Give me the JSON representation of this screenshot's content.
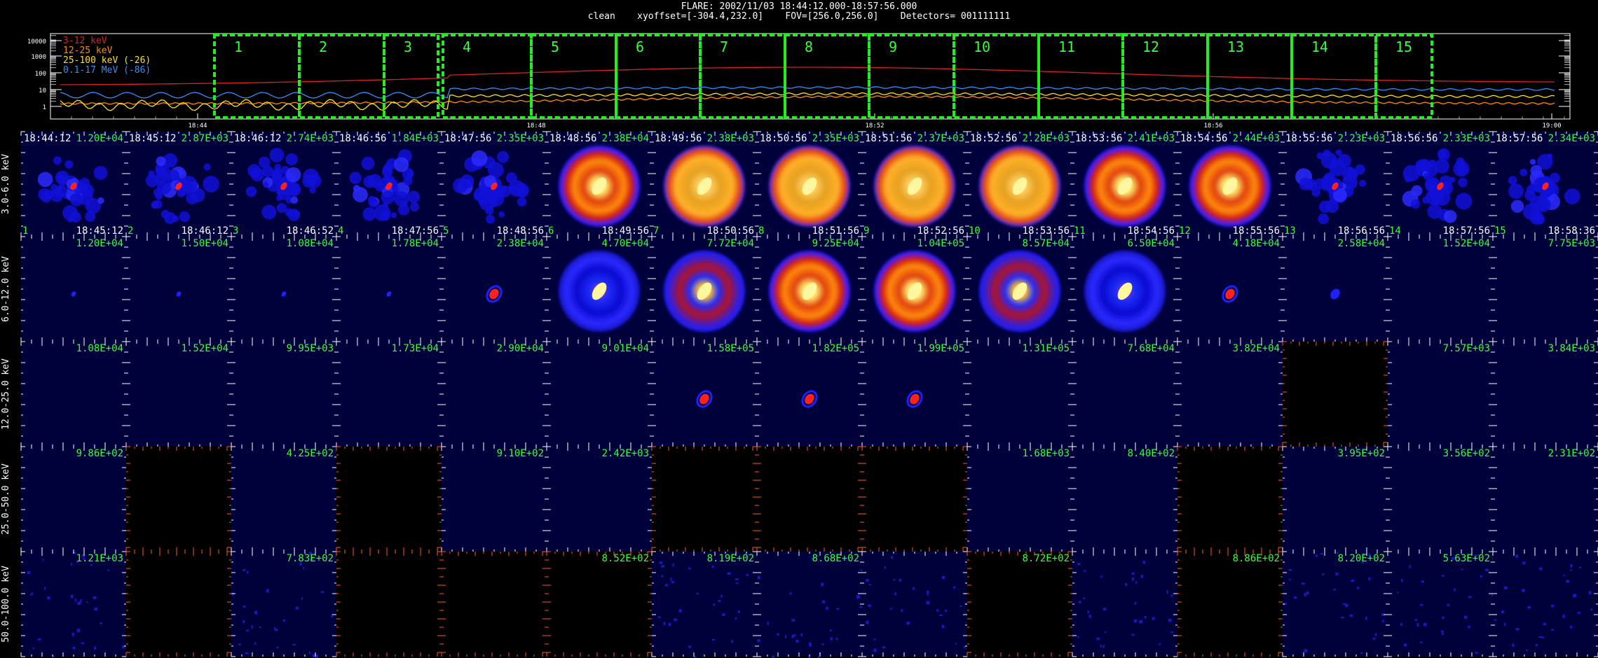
{
  "header": {
    "line1": "FLARE: 2002/11/03 18:44:12.000-18:57:56.000",
    "line2": "clean    xyoffset=[-304.4,232.0]    FOV=[256.0,256.0]    Detectors= 001111111"
  },
  "lightcurve": {
    "y_tick_labels": [
      "10000",
      "1000",
      "100",
      "10",
      "1"
    ],
    "time_tick_labels": [
      "18:44",
      "18:48",
      "18:52",
      "18:56",
      "19:00"
    ],
    "legend": [
      {
        "label": "3-12 keV",
        "color": "#e02020"
      },
      {
        "label": "12-25 keV",
        "color": "#ff8c00"
      },
      {
        "label": "25-100 keV (-26)",
        "color": "#ffe020"
      },
      {
        "label": "0.1-17 MeV (-86)",
        "color": "#2f8fff"
      }
    ],
    "interval_labels": [
      "1",
      "2",
      "3",
      "4",
      "5",
      "6",
      "7",
      "8",
      "9",
      "10",
      "11",
      "12",
      "13",
      "14",
      "15"
    ],
    "interval_color": "#22ee22"
  },
  "row_labels": [
    "3.0-6.0 keV",
    "6.0-12.0 keV",
    "12.0-25.0 keV",
    "25.0-50.0 keV",
    "50.0-100.0 keV"
  ],
  "start_times": [
    "18:44:12",
    "18:45:12",
    "18:46:12",
    "18:46:56",
    "18:47:56",
    "18:48:56",
    "18:49:56",
    "18:50:56",
    "18:51:56",
    "18:52:56",
    "18:53:56",
    "18:54:56",
    "18:55:56",
    "18:56:56",
    "18:57:56"
  ],
  "end_times": [
    "18:45:12",
    "18:46:12",
    "18:46:52",
    "18:47:56",
    "18:48:56",
    "18:49:56",
    "18:50:56",
    "18:51:56",
    "18:52:56",
    "18:53:56",
    "18:54:56",
    "18:55:56",
    "18:56:56",
    "18:57:56",
    "18:58:36"
  ],
  "column_numbers": [
    "1",
    "2",
    "3",
    "4",
    "5",
    "6",
    "7",
    "8",
    "9",
    "10",
    "11",
    "12",
    "13",
    "14",
    "15"
  ],
  "counts": [
    [
      "1.20E+04",
      "2.87E+03",
      "2.74E+03",
      "1.84E+03",
      "2.35E+03",
      "2.38E+04",
      "2.38E+03",
      "2.35E+03",
      "2.37E+03",
      "2.28E+03",
      "2.41E+03",
      "2.44E+03",
      "2.23E+03",
      "2.33E+03",
      "2.34E+03"
    ],
    [
      "1.20E+04",
      "1.50E+04",
      "1.08E+04",
      "1.78E+04",
      "2.38E+04",
      "4.70E+04",
      "7.72E+04",
      "9.25E+04",
      "1.04E+05",
      "8.57E+04",
      "6.50E+04",
      "4.18E+04",
      "2.58E+04",
      "1.52E+04",
      "7.75E+03"
    ],
    [
      "1.08E+04",
      "1.52E+04",
      "9.95E+03",
      "1.73E+04",
      "2.90E+04",
      "9.01E+04",
      "1.58E+05",
      "1.82E+05",
      "1.99E+05",
      "1.31E+05",
      "7.68E+04",
      "3.82E+04",
      "",
      "7.57E+03",
      "3.84E+03"
    ],
    [
      "9.86E+02",
      "",
      "4.25E+02",
      "",
      "9.10E+02",
      "2.42E+03",
      "",
      "",
      "",
      "1.68E+03",
      "8.40E+02",
      "",
      "3.95E+02",
      "3.56E+02",
      "2.31E+02"
    ],
    [
      "1.21E+03",
      "",
      "7.83E+02",
      "",
      "",
      "8.52E+02",
      "8.19E+02",
      "8.68E+02",
      "",
      "8.72E+02",
      "",
      "8.86E+02",
      "8.20E+02",
      "5.63E+02",
      ""
    ]
  ],
  "cell_state": [
    [
      "ring",
      "ring",
      "ring",
      "ring",
      "ring",
      "ring",
      "ring",
      "ring",
      "ring",
      "ring",
      "ring",
      "ring",
      "ring",
      "ring",
      "ring"
    ],
    [
      "dot",
      "dot",
      "dot",
      "dot",
      "dot",
      "ring",
      "ring",
      "ring",
      "ring",
      "ring",
      "ring",
      "dot",
      "dot",
      "empty",
      "empty"
    ],
    [
      "empty",
      "empty",
      "empty",
      "empty",
      "empty",
      "empty",
      "dot",
      "dot",
      "dot",
      "empty",
      "empty",
      "empty",
      "blank",
      "empty",
      "empty"
    ],
    [
      "empty",
      "blank",
      "empty",
      "blank",
      "empty",
      "empty",
      "blank",
      "blank",
      "blank",
      "empty",
      "empty",
      "blank",
      "empty",
      "empty",
      "empty"
    ],
    [
      "noise",
      "blank",
      "noise",
      "blank",
      "blank",
      "blank",
      "noise",
      "noise",
      "noise",
      "blank",
      "noise",
      "blank",
      "noise",
      "noise",
      "noise"
    ]
  ],
  "colors": {
    "panel_bg": "#00003a",
    "tick_white": "#ffffff",
    "tick_orange": "#ff5a1a",
    "label_green": "#39ff39"
  }
}
